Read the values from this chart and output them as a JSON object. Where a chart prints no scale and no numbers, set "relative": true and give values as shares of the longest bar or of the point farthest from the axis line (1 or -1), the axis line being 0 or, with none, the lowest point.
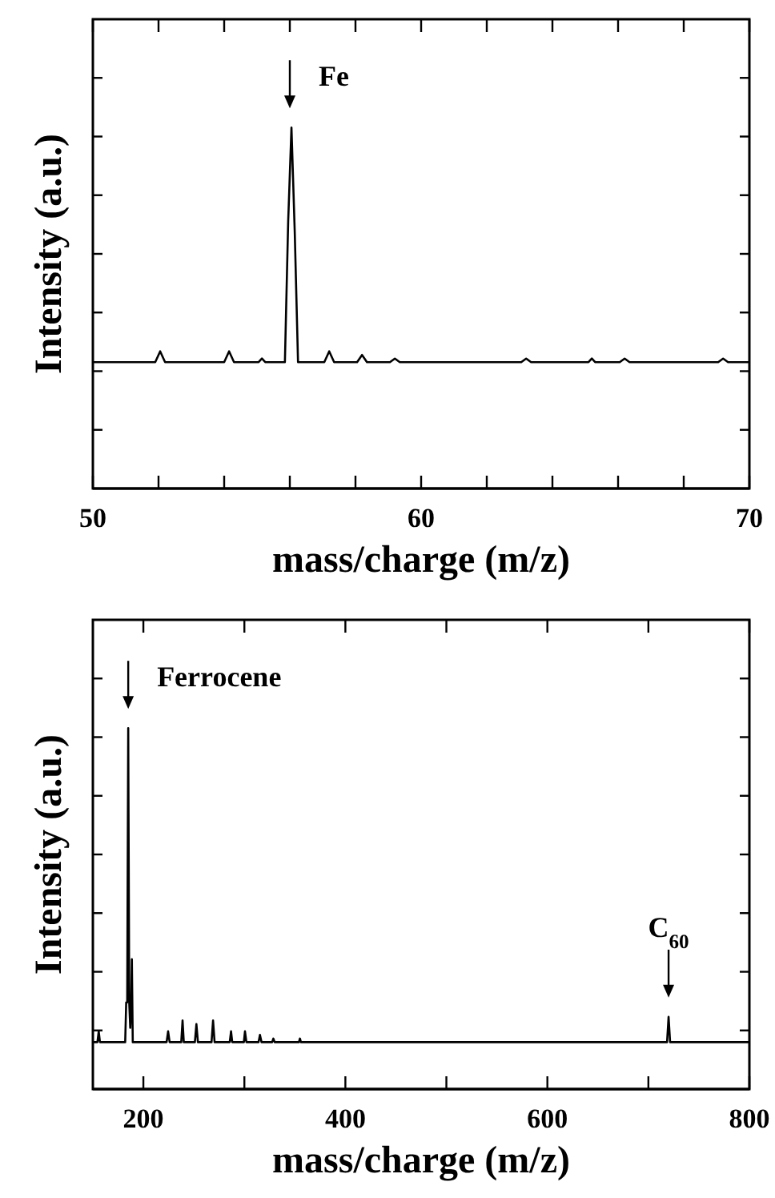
{
  "chart_data": [
    {
      "type": "line",
      "relative": true,
      "xlabel": "mass/charge (m/z)",
      "ylabel": "Intensity (a.u.)",
      "xlim": [
        50,
        70
      ],
      "xticks": [
        50,
        {
          "value": 52,
          "label": null
        },
        {
          "value": 54,
          "label": null
        },
        {
          "value": 56,
          "label": null
        },
        {
          "value": 58,
          "label": null
        },
        60,
        {
          "value": 62,
          "label": null
        },
        {
          "value": 64,
          "label": null
        },
        {
          "value": 66,
          "label": null
        },
        {
          "value": 68,
          "label": null
        },
        70
      ],
      "line_style": "solid",
      "series": [
        {
          "color": "#000000",
          "x": [
            50,
            51.9,
            52.05,
            52.2,
            54.0,
            54.15,
            54.3,
            55.05,
            55.15,
            55.25,
            55.85,
            55.95,
            56.05,
            56.15,
            56.25,
            57.05,
            57.2,
            57.35,
            58.05,
            58.2,
            58.35,
            59.05,
            59.2,
            59.35,
            63.05,
            63.2,
            63.35,
            65.1,
            65.2,
            65.3,
            66.05,
            66.2,
            66.35,
            69.05,
            69.2,
            69.35,
            70
          ],
          "values": [
            0.35,
            0.35,
            0.38,
            0.35,
            0.35,
            0.38,
            0.35,
            0.35,
            0.36,
            0.35,
            0.35,
            0.74,
            1,
            0.71,
            0.35,
            0.35,
            0.38,
            0.35,
            0.35,
            0.37,
            0.35,
            0.35,
            0.36,
            0.35,
            0.35,
            0.36,
            0.35,
            0.35,
            0.36,
            0.35,
            0.35,
            0.36,
            0.35,
            0.35,
            0.36,
            0.35,
            0.35
          ]
        }
      ],
      "annotations": [
        {
          "text": "Fe",
          "x": 56,
          "y": 1
        }
      ]
    },
    {
      "type": "line",
      "relative": true,
      "xlabel": "mass/charge (m/z)",
      "ylabel": "Intensity (a.u.)",
      "xlim": [
        150,
        800
      ],
      "xticks": [
        200,
        {
          "value": 300,
          "label": null
        },
        400,
        {
          "value": 500,
          "label": null
        },
        600,
        {
          "value": 700,
          "label": null
        },
        800
      ],
      "line_style": "solid",
      "series": [
        {
          "color": "#000000",
          "x": [
            150,
            154.5,
            155.8,
            157,
            182,
            183,
            184,
            185,
            186,
            187,
            187.8,
            188.6,
            189.5,
            200,
            223,
            224.5,
            226,
            237.5,
            238.8,
            240,
            251,
            252.5,
            254,
            267.5,
            269,
            270.5,
            285.5,
            286.8,
            288,
            299.5,
            300.6,
            302,
            314,
            315.4,
            317,
            327.5,
            328.7,
            330,
            354,
            355,
            356,
            718.5,
            720,
            721.5,
            800
          ],
          "values": [
            0.13,
            0.13,
            0.16,
            0.13,
            0.13,
            0.24,
            0.24,
            1,
            0.24,
            0.17,
            0.22,
            0.36,
            0.13,
            0.13,
            0.13,
            0.16,
            0.13,
            0.13,
            0.19,
            0.13,
            0.13,
            0.18,
            0.13,
            0.13,
            0.19,
            0.13,
            0.13,
            0.16,
            0.13,
            0.13,
            0.16,
            0.13,
            0.13,
            0.15,
            0.13,
            0.13,
            0.14,
            0.13,
            0.13,
            0.14,
            0.13,
            0.13,
            0.2,
            0.13,
            0.13
          ]
        }
      ],
      "annotations": [
        {
          "text": "Ferrocene",
          "x": 185,
          "y": 1
        },
        {
          "text": "C$_{60}$",
          "x": 720,
          "y": 0.2
        }
      ]
    }
  ]
}
